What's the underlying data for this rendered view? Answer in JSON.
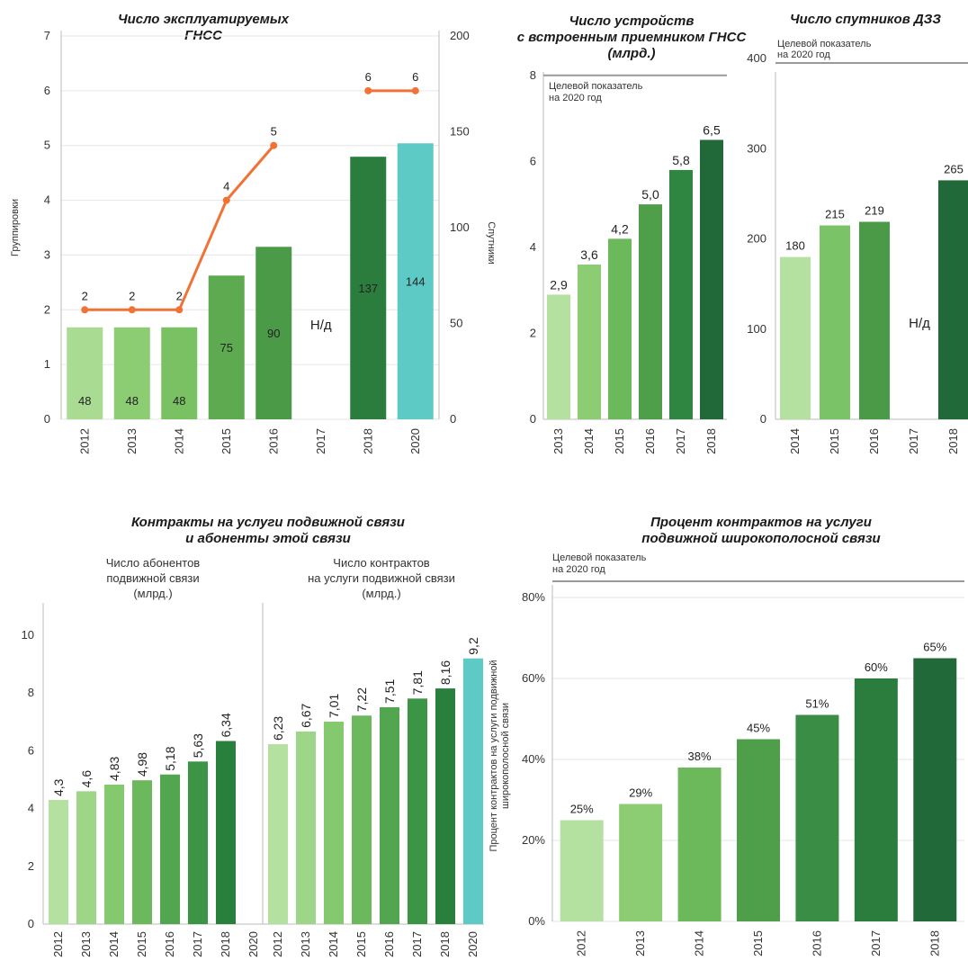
{
  "chart_data": [
    {
      "id": "gnss",
      "type": "bar",
      "title_lines": [
        "Число эксплуатируемых",
        "ГНСС"
      ],
      "categories": [
        "2012",
        "2013",
        "2014",
        "2015",
        "2016",
        "2017",
        "2018",
        "2020"
      ],
      "y_left_label": "Группировки",
      "y_left_ticks": [
        "0",
        "1",
        "2",
        "3",
        "4",
        "5",
        "6",
        "7"
      ],
      "y_left_range": [
        0,
        7
      ],
      "y_right_label": "Спутники",
      "y_right_ticks": [
        "0",
        "50",
        "100",
        "150",
        "200"
      ],
      "y_right_range": [
        0,
        200
      ],
      "bars": [
        48,
        48,
        48,
        75,
        90,
        null,
        137,
        144
      ],
      "bar_labels": [
        "48",
        "48",
        "48",
        "75",
        "90",
        "",
        "137",
        "144"
      ],
      "bar_colors": [
        "#a9dc92",
        "#8ccd74",
        "#79c163",
        "#5daa50",
        "#4b9a48",
        "#ffffff",
        "#2a7d3c",
        "#5ecac6"
      ],
      "na_label": "Н/д",
      "line_segments": [
        {
          "points": [
            [
              0,
              2
            ],
            [
              1,
              2
            ],
            [
              2,
              2
            ],
            [
              3,
              4
            ],
            [
              4,
              5
            ]
          ],
          "labels": [
            "2",
            "2",
            "2",
            "4",
            "5"
          ]
        },
        {
          "points": [
            [
              6,
              6
            ],
            [
              7,
              6
            ]
          ],
          "labels": [
            "6",
            "6"
          ]
        }
      ],
      "line_color": "#f07234"
    },
    {
      "id": "devices",
      "type": "bar",
      "title_lines": [
        "Число устройств",
        "с встроенным приемником ГНСС",
        "(млрд.)"
      ],
      "target_note": [
        "Целевой показатель",
        "на 2020 год"
      ],
      "target_value": 8,
      "categories": [
        "2013",
        "2014",
        "2015",
        "2016",
        "2017",
        "2018"
      ],
      "values": [
        2.9,
        3.6,
        4.2,
        5.0,
        5.8,
        6.5
      ],
      "value_labels": [
        "2,9",
        "3,6",
        "4,2",
        "5,0",
        "5,8",
        "6,5"
      ],
      "y_ticks": [
        "0",
        "2",
        "4",
        "6",
        "8"
      ],
      "y_range": [
        0,
        9
      ],
      "bar_colors": [
        "#b4e1a0",
        "#8ccd74",
        "#6cb95c",
        "#4e9e4a",
        "#2e8640",
        "#22693a"
      ]
    },
    {
      "id": "eo_sats",
      "type": "bar",
      "title_lines": [
        "Число спутников ДЗЗ"
      ],
      "target_note": [
        "Целевой показатель",
        "на 2020 год"
      ],
      "categories": [
        "2014",
        "2015",
        "2016",
        "2017",
        "2018"
      ],
      "values": [
        180,
        215,
        219,
        null,
        265
      ],
      "value_labels": [
        "180",
        "215",
        "219",
        "",
        "265"
      ],
      "na_label": "Н/д",
      "y_ticks": [
        "0",
        "100",
        "200",
        "300",
        "400"
      ],
      "y_range": [
        0,
        445
      ],
      "bar_colors": [
        "#b4e1a0",
        "#7bc367",
        "#4b9a48",
        "#ffffff",
        "#22693a"
      ]
    },
    {
      "id": "mobile",
      "type": "bar",
      "title_lines": [
        "Контракты на услуги подвижной связи",
        "и абоненты этой связи"
      ],
      "y_ticks": [
        "0",
        "2",
        "4",
        "6",
        "8",
        "10"
      ],
      "y_range": [
        0,
        10.5
      ],
      "panels": [
        {
          "subtitle": [
            "Число абонентов",
            "подвижной связи",
            "(млрд.)"
          ],
          "categories": [
            "2012",
            "2013",
            "2014",
            "2015",
            "2016",
            "2017",
            "2018",
            "2020"
          ],
          "values": [
            4.3,
            4.6,
            4.83,
            4.98,
            5.18,
            5.63,
            6.34,
            null
          ],
          "value_labels": [
            "4,3",
            "4,6",
            "4,83",
            "4,98",
            "5,18",
            "5,63",
            "6,34",
            ""
          ],
          "bar_colors": [
            "#b4e1a0",
            "#9dd687",
            "#84c96e",
            "#6bb95c",
            "#52a64f",
            "#3c9445",
            "#28803c",
            "#ffffff"
          ]
        },
        {
          "subtitle": [
            "Число контрактов",
            "на услуги подвижной связи",
            "(млрд.)"
          ],
          "categories": [
            "2012",
            "2013",
            "2014",
            "2015",
            "2016",
            "2017",
            "2018",
            "2020"
          ],
          "values": [
            6.23,
            6.67,
            7.01,
            7.22,
            7.51,
            7.81,
            8.16,
            9.2
          ],
          "value_labels": [
            "6,23",
            "6,67",
            "7,01",
            "7,22",
            "7,51",
            "7,81",
            "8,16",
            "9,2"
          ],
          "bar_colors": [
            "#b4e1a0",
            "#9dd687",
            "#84c96e",
            "#6bb95c",
            "#52a64f",
            "#3c9445",
            "#28803c",
            "#5ecac6"
          ]
        }
      ]
    },
    {
      "id": "broadband",
      "type": "bar",
      "title_lines": [
        "Процент контрактов на услуги",
        "подвижной широкополосной связи"
      ],
      "target_note": [
        "Целевой показатель",
        "на 2020 год"
      ],
      "y_label_lines": [
        "Процент контрактов на услуги подвижной",
        "широкополосной связи"
      ],
      "categories": [
        "2012",
        "2013",
        "2014",
        "2015",
        "2016",
        "2017",
        "2018"
      ],
      "values": [
        25,
        29,
        38,
        45,
        51,
        60,
        65
      ],
      "value_labels": [
        "25%",
        "29%",
        "38%",
        "45%",
        "51%",
        "60%",
        "65%"
      ],
      "y_ticks": [
        "0%",
        "20%",
        "40%",
        "60%",
        "80%"
      ],
      "y_range": [
        0,
        80
      ],
      "bar_colors": [
        "#b4e1a0",
        "#8ccd74",
        "#6cb95c",
        "#4e9e4a",
        "#3a8d44",
        "#2a7d3c",
        "#22693a"
      ]
    }
  ]
}
